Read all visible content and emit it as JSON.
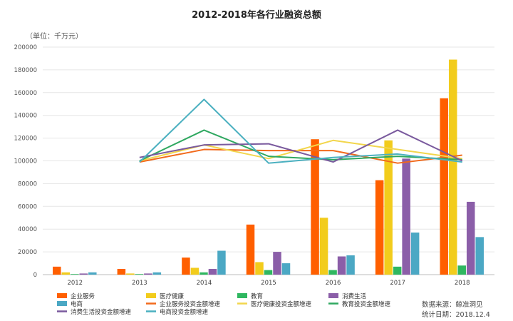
{
  "chart_data": {
    "type": "bar",
    "title": "2012-2018年各行业融资总额",
    "unit_label": "（单位：千万元）",
    "categories": [
      "2012",
      "2013",
      "2014",
      "2015",
      "2016",
      "2017",
      "2018"
    ],
    "ylim": [
      0,
      200000
    ],
    "yticks": [
      "0",
      "20000",
      "40000",
      "60000",
      "80000",
      "100000",
      "120000",
      "140000",
      "160000",
      "180000",
      "200000"
    ],
    "grid": true,
    "legend_position": "bottom",
    "bar_series": [
      {
        "name": "企业服务",
        "color": "#FF5F00",
        "values": [
          7000,
          5000,
          15000,
          44000,
          119000,
          83000,
          155000
        ]
      },
      {
        "name": "医疗健康",
        "color": "#F2CC1C",
        "values": [
          2000,
          1000,
          6000,
          11000,
          50000,
          118000,
          189000
        ]
      },
      {
        "name": "教育",
        "color": "#2FB760",
        "values": [
          500,
          500,
          2000,
          4000,
          4000,
          7000,
          8000
        ]
      },
      {
        "name": "消费生活",
        "color": "#8B5EA8",
        "values": [
          1000,
          1000,
          5000,
          20000,
          16000,
          102000,
          64000
        ]
      },
      {
        "name": "电商",
        "color": "#4BA8C4",
        "values": [
          2000,
          2000,
          21000,
          10000,
          17000,
          37000,
          33000
        ]
      }
    ],
    "line_series": [
      {
        "name": "企业服务投资金额增速",
        "color": "#F26A1C",
        "values": [
          null,
          99000,
          110000,
          109000,
          109000,
          98000,
          105000
        ]
      },
      {
        "name": "医疗健康投资金额增速",
        "color": "#F2D64C",
        "values": [
          null,
          100000,
          114000,
          102000,
          118000,
          110000,
          102000
        ]
      },
      {
        "name": "教育投资金额增速",
        "color": "#2FA860",
        "values": [
          null,
          100000,
          127000,
          104000,
          101000,
          104000,
          101000
        ]
      },
      {
        "name": "消费生活投资金额增速",
        "color": "#7A5A9E",
        "values": [
          null,
          103000,
          114000,
          115000,
          99000,
          127000,
          100000
        ]
      },
      {
        "name": "电商投资金额增速",
        "color": "#4BB0C0",
        "values": [
          null,
          99000,
          154000,
          98000,
          103000,
          106000,
          99000
        ]
      }
    ],
    "legend_order": [
      "企业服务",
      "医疗健康",
      "教育",
      "消费生活",
      "电商",
      "企业服务投资金额增速",
      "医疗健康投资金额增速",
      "教育投资金额增速",
      "消费生活投资金额增速",
      "电商投资金额增速"
    ]
  },
  "source_lines": [
    "数据来源：鲸准洞见",
    "统计日期：2018.12.4"
  ]
}
